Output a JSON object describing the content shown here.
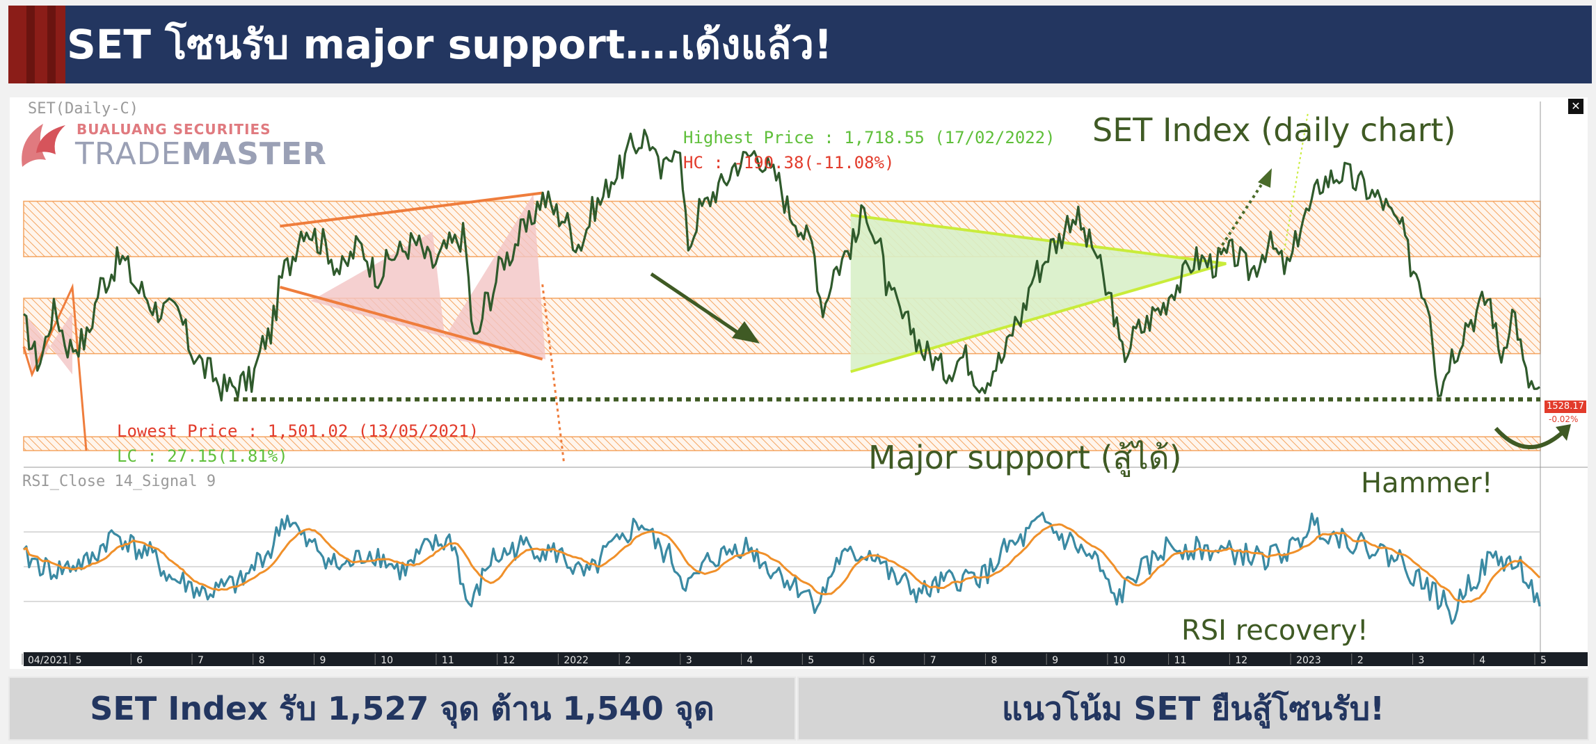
{
  "header": {
    "title": "SET โซนรับ major support….เด้งแล้ว!"
  },
  "logo": {
    "company": "BUALUANG SECURITIES",
    "product_light": "TRADE",
    "product_bold": "MASTER"
  },
  "chart_labels": {
    "series_label": "SET(Daily-C)",
    "rsi_label": "RSI_Close 14_Signal 9",
    "chart_title": "SET Index (daily chart)",
    "highest": "Highest Price : 1,718.55 (17/02/2022)",
    "hc": "HC : -190.38(-11.08%)",
    "lowest": "Lowest Price : 1,501.02 (13/05/2021)",
    "lc": "LC : 27.15(1.81%)",
    "major_support": "Major support (สู้ได้)",
    "hammer": "Hammer!",
    "rsi_recovery": "RSI recovery!",
    "last_price": "1528.17",
    "last_change": "-0.02%",
    "close_symbol": "✕"
  },
  "chart_data": [
    {
      "type": "line",
      "name": "price",
      "title": "SET Index (daily chart)",
      "x_ticks": [
        "04/2021",
        "5",
        "6",
        "7",
        "8",
        "9",
        "10",
        "11",
        "12",
        "2022",
        "2",
        "3",
        "4",
        "5",
        "6",
        "7",
        "8",
        "9",
        "10",
        "11",
        "12",
        "2023",
        "2",
        "3",
        "4",
        "5"
      ],
      "x_range": [
        "2021-04",
        "2023-05"
      ],
      "y_range": [
        1480,
        1740
      ],
      "resistance_zones": [
        [
          1630,
          1670
        ],
        [
          1560,
          1600
        ]
      ],
      "support_zone": [
        1490,
        1500
      ],
      "major_support_level": 1527,
      "highest": {
        "value": 1718.55,
        "date": "17/02/2022"
      },
      "lowest": {
        "value": 1501.02,
        "date": "13/05/2021"
      },
      "last": 1528.17,
      "waypoints": [
        {
          "month": 0.0,
          "value": 1580
        },
        {
          "month": 0.25,
          "value": 1555
        },
        {
          "month": 0.5,
          "value": 1590
        },
        {
          "month": 0.75,
          "value": 1565
        },
        {
          "month": 1.0,
          "value": 1570
        },
        {
          "month": 1.3,
          "value": 1612
        },
        {
          "month": 1.6,
          "value": 1628
        },
        {
          "month": 1.9,
          "value": 1606
        },
        {
          "month": 2.2,
          "value": 1592
        },
        {
          "month": 2.5,
          "value": 1590
        },
        {
          "month": 2.8,
          "value": 1560
        },
        {
          "month": 3.0,
          "value": 1548
        },
        {
          "month": 3.3,
          "value": 1535
        },
        {
          "month": 3.7,
          "value": 1540
        },
        {
          "month": 4.0,
          "value": 1572
        },
        {
          "month": 4.3,
          "value": 1622
        },
        {
          "month": 4.6,
          "value": 1652
        },
        {
          "month": 4.9,
          "value": 1640
        },
        {
          "month": 5.2,
          "value": 1620
        },
        {
          "month": 5.5,
          "value": 1638
        },
        {
          "month": 5.8,
          "value": 1618
        },
        {
          "month": 6.1,
          "value": 1632
        },
        {
          "month": 6.4,
          "value": 1640
        },
        {
          "month": 6.7,
          "value": 1625
        },
        {
          "month": 7.0,
          "value": 1638
        },
        {
          "month": 7.2,
          "value": 1645
        },
        {
          "month": 7.4,
          "value": 1568
        },
        {
          "month": 7.6,
          "value": 1600
        },
        {
          "month": 7.9,
          "value": 1630
        },
        {
          "month": 8.2,
          "value": 1648
        },
        {
          "month": 8.5,
          "value": 1672
        },
        {
          "month": 8.8,
          "value": 1660
        },
        {
          "month": 9.1,
          "value": 1640
        },
        {
          "month": 9.4,
          "value": 1668
        },
        {
          "month": 9.7,
          "value": 1690
        },
        {
          "month": 10.0,
          "value": 1710
        },
        {
          "month": 10.2,
          "value": 1718
        },
        {
          "month": 10.45,
          "value": 1690
        },
        {
          "month": 10.7,
          "value": 1715
        },
        {
          "month": 10.9,
          "value": 1640
        },
        {
          "month": 11.1,
          "value": 1665
        },
        {
          "month": 11.4,
          "value": 1680
        },
        {
          "month": 11.7,
          "value": 1698
        },
        {
          "month": 12.0,
          "value": 1705
        },
        {
          "month": 12.3,
          "value": 1688
        },
        {
          "month": 12.6,
          "value": 1660
        },
        {
          "month": 12.9,
          "value": 1640
        },
        {
          "month": 13.1,
          "value": 1595
        },
        {
          "month": 13.3,
          "value": 1622
        },
        {
          "month": 13.6,
          "value": 1640
        },
        {
          "month": 13.8,
          "value": 1665
        },
        {
          "month": 14.0,
          "value": 1638
        },
        {
          "month": 14.2,
          "value": 1600
        },
        {
          "month": 14.5,
          "value": 1580
        },
        {
          "month": 14.8,
          "value": 1560
        },
        {
          "month": 15.1,
          "value": 1548
        },
        {
          "month": 15.4,
          "value": 1558
        },
        {
          "month": 15.7,
          "value": 1540
        },
        {
          "month": 16.0,
          "value": 1555
        },
        {
          "month": 16.3,
          "value": 1585
        },
        {
          "month": 16.6,
          "value": 1620
        },
        {
          "month": 16.9,
          "value": 1640
        },
        {
          "month": 17.2,
          "value": 1660
        },
        {
          "month": 17.5,
          "value": 1638
        },
        {
          "month": 17.8,
          "value": 1600
        },
        {
          "month": 18.0,
          "value": 1560
        },
        {
          "month": 18.3,
          "value": 1578
        },
        {
          "month": 18.6,
          "value": 1592
        },
        {
          "month": 18.9,
          "value": 1610
        },
        {
          "month": 19.2,
          "value": 1628
        },
        {
          "month": 19.5,
          "value": 1625
        },
        {
          "month": 19.8,
          "value": 1632
        },
        {
          "month": 20.1,
          "value": 1620
        },
        {
          "month": 20.4,
          "value": 1638
        },
        {
          "month": 20.7,
          "value": 1622
        },
        {
          "month": 21.0,
          "value": 1660
        },
        {
          "month": 21.3,
          "value": 1685
        },
        {
          "month": 21.6,
          "value": 1690
        },
        {
          "month": 21.9,
          "value": 1682
        },
        {
          "month": 22.2,
          "value": 1672
        },
        {
          "month": 22.5,
          "value": 1655
        },
        {
          "month": 22.8,
          "value": 1620
        },
        {
          "month": 23.0,
          "value": 1600
        },
        {
          "month": 23.2,
          "value": 1535
        },
        {
          "month": 23.4,
          "value": 1560
        },
        {
          "month": 23.7,
          "value": 1585
        },
        {
          "month": 24.0,
          "value": 1600
        },
        {
          "month": 24.2,
          "value": 1560
        },
        {
          "month": 24.4,
          "value": 1590
        },
        {
          "month": 24.65,
          "value": 1540
        },
        {
          "month": 24.85,
          "value": 1528
        }
      ]
    },
    {
      "type": "line",
      "name": "rsi",
      "series": [
        {
          "name": "RSI"
        },
        {
          "name": "Signal"
        }
      ],
      "levels": [
        70,
        50,
        30
      ],
      "waypoints": [
        {
          "month": 0.0,
          "value": 55
        },
        {
          "month": 0.5,
          "value": 48
        },
        {
          "month": 1.0,
          "value": 52
        },
        {
          "month": 1.5,
          "value": 68
        },
        {
          "month": 2.0,
          "value": 58
        },
        {
          "month": 2.5,
          "value": 42
        },
        {
          "month": 3.0,
          "value": 35
        },
        {
          "month": 3.5,
          "value": 40
        },
        {
          "month": 4.0,
          "value": 58
        },
        {
          "month": 4.3,
          "value": 78
        },
        {
          "month": 4.7,
          "value": 62
        },
        {
          "month": 5.2,
          "value": 50
        },
        {
          "month": 5.7,
          "value": 58
        },
        {
          "month": 6.2,
          "value": 48
        },
        {
          "month": 6.7,
          "value": 62
        },
        {
          "month": 7.0,
          "value": 65
        },
        {
          "month": 7.3,
          "value": 28
        },
        {
          "month": 7.7,
          "value": 55
        },
        {
          "month": 8.2,
          "value": 62
        },
        {
          "month": 8.7,
          "value": 58
        },
        {
          "month": 9.2,
          "value": 45
        },
        {
          "month": 9.7,
          "value": 62
        },
        {
          "month": 10.1,
          "value": 75
        },
        {
          "month": 10.5,
          "value": 58
        },
        {
          "month": 10.9,
          "value": 40
        },
        {
          "month": 11.3,
          "value": 55
        },
        {
          "month": 11.8,
          "value": 62
        },
        {
          "month": 12.3,
          "value": 48
        },
        {
          "month": 12.7,
          "value": 38
        },
        {
          "month": 13.0,
          "value": 30
        },
        {
          "month": 13.4,
          "value": 55
        },
        {
          "month": 13.9,
          "value": 58
        },
        {
          "month": 14.3,
          "value": 42
        },
        {
          "month": 14.7,
          "value": 35
        },
        {
          "month": 15.2,
          "value": 42
        },
        {
          "month": 15.7,
          "value": 45
        },
        {
          "month": 16.2,
          "value": 62
        },
        {
          "month": 16.7,
          "value": 75
        },
        {
          "month": 17.1,
          "value": 65
        },
        {
          "month": 17.5,
          "value": 55
        },
        {
          "month": 17.9,
          "value": 32
        },
        {
          "month": 18.3,
          "value": 48
        },
        {
          "month": 18.8,
          "value": 62
        },
        {
          "month": 19.3,
          "value": 60
        },
        {
          "month": 19.8,
          "value": 58
        },
        {
          "month": 20.3,
          "value": 55
        },
        {
          "month": 20.8,
          "value": 60
        },
        {
          "month": 21.1,
          "value": 75
        },
        {
          "month": 21.5,
          "value": 68
        },
        {
          "month": 22.0,
          "value": 62
        },
        {
          "month": 22.5,
          "value": 55
        },
        {
          "month": 22.9,
          "value": 42
        },
        {
          "month": 23.2,
          "value": 32
        },
        {
          "month": 23.4,
          "value": 22
        },
        {
          "month": 23.7,
          "value": 42
        },
        {
          "month": 24.1,
          "value": 55
        },
        {
          "month": 24.5,
          "value": 50
        },
        {
          "month": 24.85,
          "value": 30
        }
      ]
    }
  ],
  "footer": {
    "left": "SET Index รับ 1,527 จุด ต้าน 1,540 จุด",
    "right": "แนวโน้ม SET ยืนสู้โซนรับ!"
  },
  "colors": {
    "header_bg": "#233660",
    "accent": "#8b1d18",
    "price_line": "#2f5a2c",
    "rsi_line": "#3b8aa3",
    "signal_line": "#f0902a",
    "zone": "#f4a460",
    "support_line": "#3f5a24",
    "triangle_fill": "#d8f0c8",
    "wedge_fill": "#f3c4c4"
  }
}
